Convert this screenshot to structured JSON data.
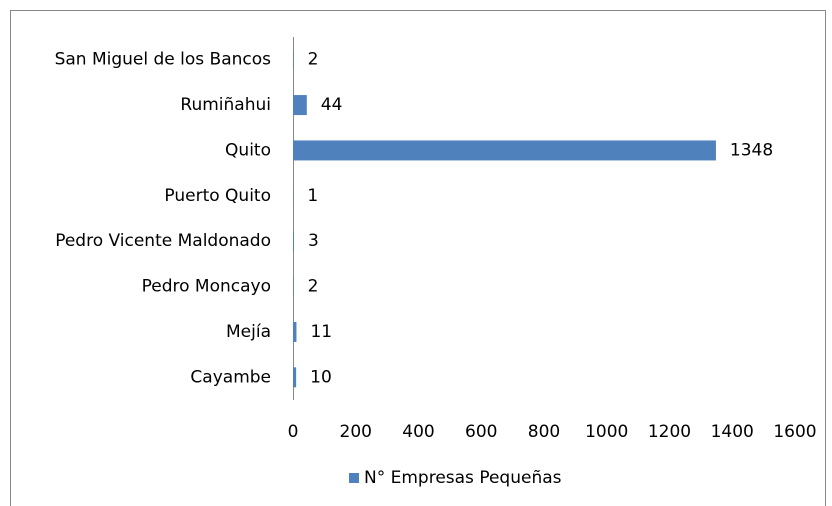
{
  "chart_data": {
    "type": "hbar",
    "categories": [
      "San Miguel de los Bancos",
      "Rumiñahui",
      "Quito",
      "Puerto Quito",
      "Pedro Vicente Maldonado",
      "Pedro Moncayo",
      "Mejía",
      "Cayambe"
    ],
    "series": [
      {
        "name": "N° Empresas Pequeñas",
        "color": "#4f81bd",
        "values": [
          2,
          44,
          1348,
          1,
          3,
          2,
          11,
          10
        ]
      }
    ],
    "xlim": [
      0,
      1600
    ],
    "xticks": [
      0,
      200,
      400,
      600,
      800,
      1000,
      1200,
      1400,
      1600
    ],
    "grid": false,
    "legend": "bottom"
  }
}
